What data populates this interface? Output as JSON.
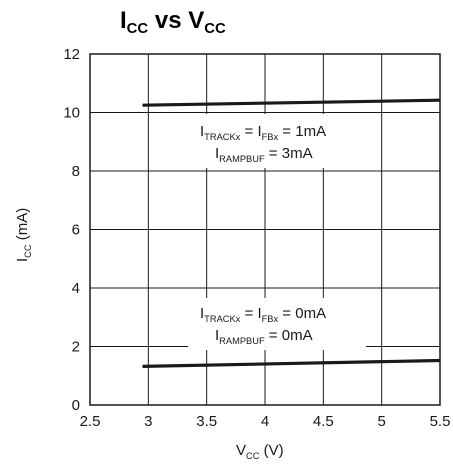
{
  "chart_data": {
    "type": "line",
    "title": {
      "a": "I",
      "a_sub": "CC",
      "b": " vs V",
      "b_sub": "CC"
    },
    "xlabel": {
      "main": "V",
      "sub": "CC",
      "rest": " (V)"
    },
    "ylabel": {
      "main": "I",
      "sub": "CC",
      "rest": " (mA)"
    },
    "xlim": [
      2.5,
      5.5
    ],
    "ylim": [
      0,
      12
    ],
    "x_ticks": [
      2.5,
      3,
      3.5,
      4,
      4.5,
      5,
      5.5
    ],
    "x_tick_labels": [
      "2.5",
      "3",
      "3.5",
      "4",
      "4.5",
      "5",
      "5.5"
    ],
    "y_ticks": [
      0,
      2,
      4,
      6,
      8,
      10,
      12
    ],
    "y_tick_labels": [
      "0",
      "2",
      "4",
      "6",
      "8",
      "10",
      "12"
    ],
    "grid": true,
    "line_color": "#1a1a1a",
    "series": [
      {
        "x": [
          2.95,
          5.5
        ],
        "y": [
          10.25,
          10.42
        ]
      },
      {
        "x": [
          2.95,
          5.5
        ],
        "y": [
          1.32,
          1.52
        ]
      }
    ],
    "annotations": [
      {
        "line1": {
          "p1": "I",
          "s1": "TRACKx",
          "p2": " = I",
          "s2": "FBx",
          "p3": " = 1mA"
        },
        "line2": {
          "p1": "I",
          "s1": "RAMPBUF",
          "p2": " = 3mA"
        }
      },
      {
        "line1": {
          "p1": "I",
          "s1": "TRACKx",
          "p2": " = I",
          "s2": "FBx",
          "p3": " = 0mA"
        },
        "line2": {
          "p1": "I",
          "s1": "RAMPBUF",
          "p2": " = 0mA"
        }
      }
    ]
  }
}
